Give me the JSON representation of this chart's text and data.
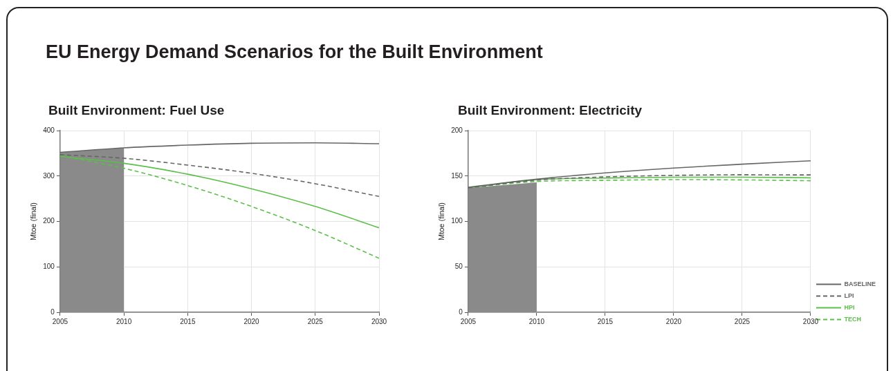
{
  "chart_data": [
    {
      "type": "line",
      "title": "EU Energy Demand Scenarios for the Built Environment",
      "subtitle": "Built Environment: Fuel Use",
      "ylabel": "Mtoe (final)",
      "x": [
        2005,
        2010,
        2015,
        2020,
        2025,
        2030
      ],
      "series": [
        {
          "type": "area",
          "color": "#8a8a8a",
          "x": [
            2005,
            2007.5,
            2010
          ],
          "values": [
            352,
            357,
            362
          ]
        },
        {
          "color": "#666666",
          "line_style": "solid",
          "values": [
            352,
            362,
            368,
            372,
            373,
            371
          ]
        },
        {
          "color": "#666666",
          "line_style": "dashed",
          "values": [
            347,
            339,
            324,
            306,
            283,
            255
          ]
        },
        {
          "color": "#5cbf4a",
          "line_style": "solid",
          "values": [
            343,
            328,
            304,
            272,
            233,
            186
          ]
        },
        {
          "color": "#5cbf4a",
          "line_style": "dashed",
          "values": [
            345,
            317,
            279,
            233,
            180,
            119
          ]
        }
      ],
      "xlim": [
        2005,
        2030
      ],
      "xticks": [
        2005,
        2010,
        2015,
        2020,
        2025,
        2030
      ],
      "ylim": [
        0,
        400
      ],
      "yticks": [
        0,
        100,
        200,
        300,
        400
      ],
      "grid": true,
      "marker": "none",
      "legend": false
    },
    {
      "type": "line",
      "title": "Built Environment: Electricity",
      "ylabel": "Mtoe (final)",
      "x": [
        2005,
        2010,
        2015,
        2020,
        2025,
        2030
      ],
      "series": [
        {
          "type": "area",
          "color": "#8a8a8a",
          "x": [
            2005,
            2007.5,
            2010
          ],
          "values": [
            137,
            140,
            143
          ]
        },
        {
          "name": "BASELINE",
          "color": "#666666",
          "line_style": "solid",
          "values": [
            137.5,
            146.5,
            153.4,
            158.8,
            163,
            166.7
          ]
        },
        {
          "name": "LPI",
          "color": "#666666",
          "line_style": "dashed",
          "values": [
            137,
            145.5,
            149,
            150.7,
            151.4,
            151.2
          ]
        },
        {
          "name": "HPI",
          "color": "#5cbf4a",
          "line_style": "solid",
          "values": [
            137,
            146,
            147.7,
            148.7,
            148.7,
            148
          ]
        },
        {
          "name": "TECH",
          "color": "#5cbf4a",
          "line_style": "dashed",
          "values": [
            137,
            144,
            145.2,
            146,
            145.7,
            144.8
          ]
        }
      ],
      "xlim": [
        2005,
        2030
      ],
      "xticks": [
        2005,
        2010,
        2015,
        2020,
        2025,
        2030
      ],
      "ylim": [
        0,
        200
      ],
      "yticks": [
        0,
        50,
        100,
        150,
        200
      ],
      "grid": true,
      "marker": "none",
      "legend": "bottom right"
    }
  ]
}
